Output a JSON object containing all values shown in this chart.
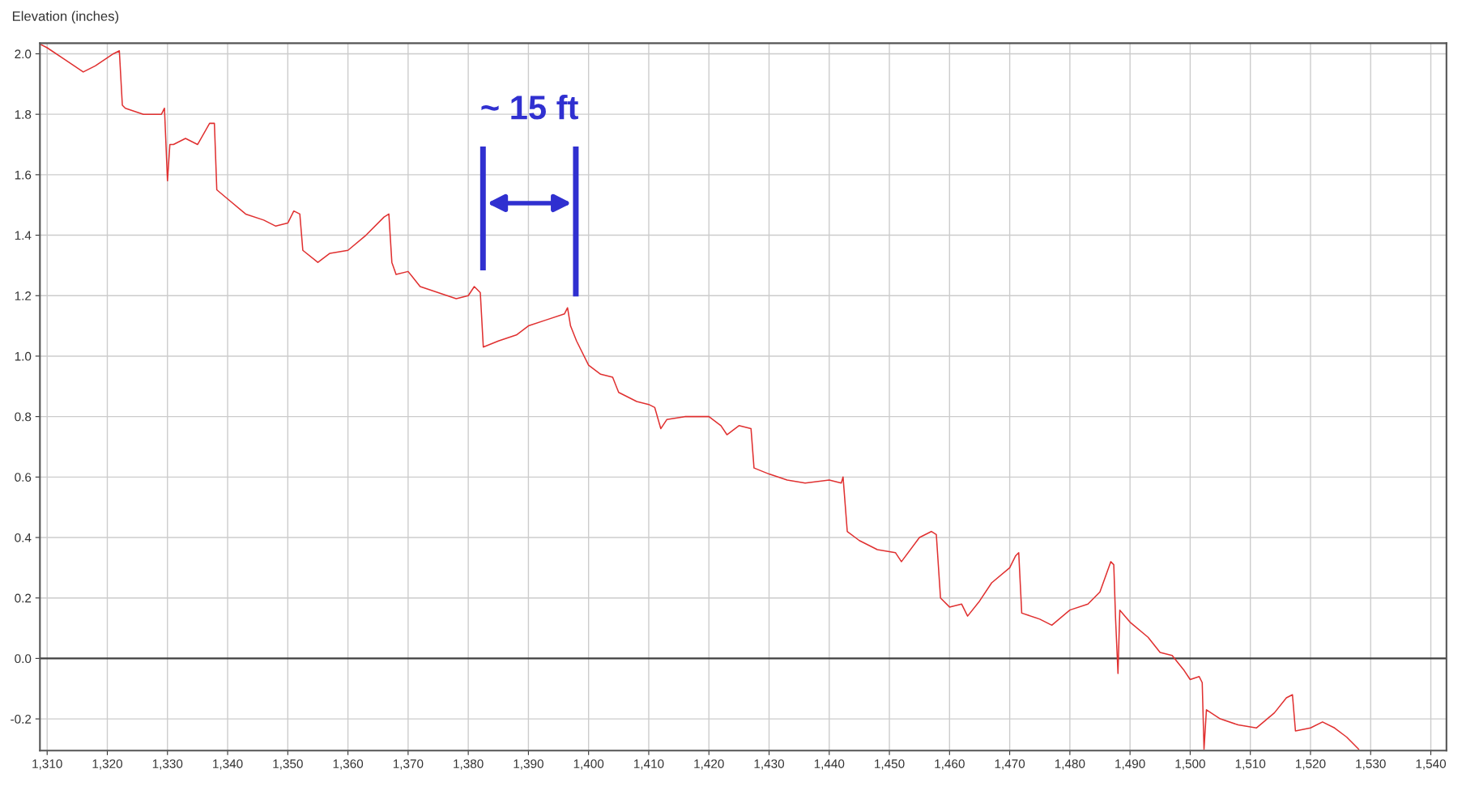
{
  "chart_data": {
    "type": "line",
    "ylabel": "Elevation (inches)",
    "x": [
      1309,
      1310,
      1313,
      1316,
      1318,
      1321,
      1322,
      1322.5,
      1323,
      1326,
      1329,
      1329.5,
      1330,
      1330.4,
      1331,
      1333,
      1335,
      1337,
      1337.8,
      1338.2,
      1340,
      1343,
      1346,
      1348,
      1350,
      1351,
      1352,
      1352.5,
      1355,
      1357,
      1360,
      1363,
      1366,
      1366.8,
      1367.3,
      1368,
      1370,
      1372,
      1375,
      1378,
      1380,
      1381,
      1382,
      1382.5,
      1385,
      1388,
      1390,
      1393,
      1396,
      1396.5,
      1397,
      1398,
      1400,
      1402,
      1404,
      1405,
      1408,
      1410,
      1411,
      1412,
      1413,
      1416,
      1419,
      1420,
      1422,
      1423,
      1425,
      1427,
      1427.5,
      1430,
      1433,
      1436,
      1440,
      1442,
      1442.3,
      1443,
      1445,
      1448,
      1451,
      1452,
      1455,
      1457,
      1457.8,
      1458.5,
      1460,
      1462,
      1463,
      1465,
      1467,
      1470,
      1471,
      1471.5,
      1472,
      1475,
      1477,
      1480,
      1483,
      1485,
      1486.8,
      1487.3,
      1487.6,
      1488,
      1488.3,
      1490,
      1493,
      1495,
      1497,
      1499,
      1500,
      1501.5,
      1502,
      1502.3,
      1502.7,
      1505,
      1508,
      1511,
      1514,
      1516,
      1517,
      1517.5,
      1520,
      1522,
      1524,
      1526,
      1528
    ],
    "series": [
      {
        "color": "#e03030",
        "values": [
          2.03,
          2.02,
          1.98,
          1.94,
          1.96,
          2.0,
          2.01,
          1.83,
          1.82,
          1.8,
          1.8,
          1.82,
          1.58,
          1.7,
          1.7,
          1.72,
          1.7,
          1.77,
          1.77,
          1.55,
          1.52,
          1.47,
          1.45,
          1.43,
          1.44,
          1.48,
          1.47,
          1.35,
          1.31,
          1.34,
          1.35,
          1.4,
          1.46,
          1.47,
          1.31,
          1.27,
          1.28,
          1.23,
          1.21,
          1.19,
          1.2,
          1.23,
          1.21,
          1.03,
          1.05,
          1.07,
          1.1,
          1.12,
          1.14,
          1.16,
          1.1,
          1.05,
          0.97,
          0.94,
          0.93,
          0.88,
          0.85,
          0.84,
          0.83,
          0.76,
          0.79,
          0.8,
          0.8,
          0.8,
          0.77,
          0.74,
          0.77,
          0.76,
          0.63,
          0.61,
          0.59,
          0.58,
          0.59,
          0.58,
          0.6,
          0.42,
          0.39,
          0.36,
          0.35,
          0.32,
          0.4,
          0.42,
          0.41,
          0.2,
          0.17,
          0.18,
          0.14,
          0.19,
          0.25,
          0.3,
          0.34,
          0.35,
          0.15,
          0.13,
          0.11,
          0.16,
          0.18,
          0.22,
          0.32,
          0.31,
          0.13,
          -0.05,
          0.16,
          0.12,
          0.07,
          0.02,
          0.01,
          -0.04,
          -0.07,
          -0.06,
          -0.08,
          -0.3,
          -0.17,
          -0.2,
          -0.22,
          -0.23,
          -0.18,
          -0.13,
          -0.12,
          -0.24,
          -0.23,
          -0.21,
          -0.23,
          -0.26,
          -0.3
        ]
      }
    ],
    "xlim": [
      1308.8,
      1542.6
    ],
    "ylim": [
      -0.305,
      2.035
    ],
    "xticks": [
      {
        "value": 1310,
        "label": "1,310"
      },
      {
        "value": 1320,
        "label": "1,320"
      },
      {
        "value": 1330,
        "label": "1,330"
      },
      {
        "value": 1340,
        "label": "1,340"
      },
      {
        "value": 1350,
        "label": "1,350"
      },
      {
        "value": 1360,
        "label": "1,360"
      },
      {
        "value": 1370,
        "label": "1,370"
      },
      {
        "value": 1380,
        "label": "1,380"
      },
      {
        "value": 1390,
        "label": "1,390"
      },
      {
        "value": 1400,
        "label": "1,400"
      },
      {
        "value": 1410,
        "label": "1,410"
      },
      {
        "value": 1420,
        "label": "1,420"
      },
      {
        "value": 1430,
        "label": "1,430"
      },
      {
        "value": 1440,
        "label": "1,440"
      },
      {
        "value": 1450,
        "label": "1,450"
      },
      {
        "value": 1460,
        "label": "1,460"
      },
      {
        "value": 1470,
        "label": "1,470"
      },
      {
        "value": 1480,
        "label": "1,480"
      },
      {
        "value": 1490,
        "label": "1,490"
      },
      {
        "value": 1500,
        "label": "1,500"
      },
      {
        "value": 1510,
        "label": "1,510"
      },
      {
        "value": 1520,
        "label": "1,520"
      },
      {
        "value": 1530,
        "label": "1,530"
      },
      {
        "value": 1540,
        "label": "1,540"
      }
    ],
    "yticks": [
      {
        "value": -0.2,
        "label": "-0.2"
      },
      {
        "value": 0,
        "label": "0.0"
      },
      0.2,
      0.4,
      0.6,
      0.8,
      {
        "value": 1,
        "label": "1.0"
      },
      1.2,
      1.4,
      1.6,
      1.8,
      {
        "value": 2,
        "label": "2.0"
      }
    ],
    "ref_lines": [
      {
        "axis": "y",
        "value": 0,
        "color": "#404040"
      }
    ],
    "annotations": [
      "~ 15 ft"
    ],
    "grid": true
  }
}
